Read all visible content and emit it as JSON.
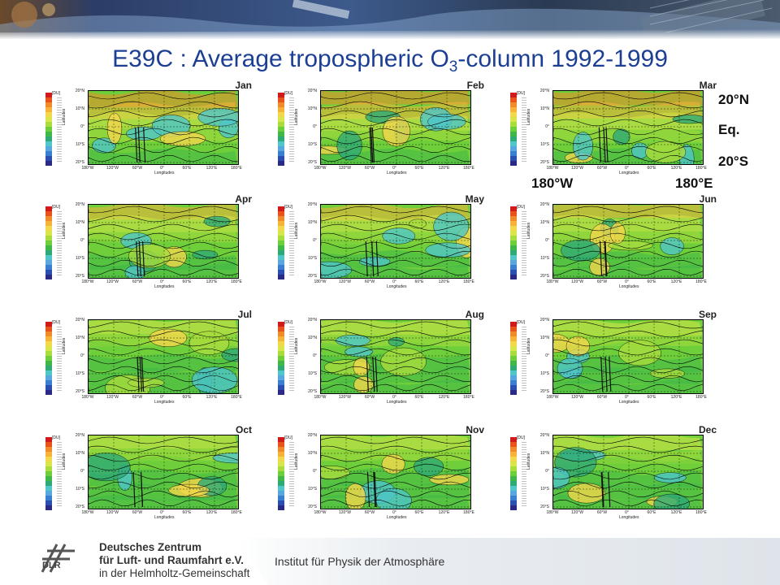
{
  "slide": {
    "title_main": "E39C : Average tropospheric O",
    "title_sub": "3",
    "title_rest": "-column 1992-1999"
  },
  "colors": {
    "title": "#1c3f94",
    "ozone_scale": [
      "#ffffff",
      "#d11a1a",
      "#e8531c",
      "#f08a2a",
      "#f5b33a",
      "#f3d84c",
      "#d9e64a",
      "#a9dd3e",
      "#6fcf3a",
      "#3fb848",
      "#2faa76",
      "#4fc6c8",
      "#58a7df",
      "#3a7fd0",
      "#2a4fb0",
      "#2a2a86"
    ]
  },
  "panel_common": {
    "unit": "[DU]",
    "y_ticks": [
      "20°N",
      "10°N",
      "0°",
      "10°S",
      "20°S"
    ],
    "y_label": "Latitudes",
    "x_ticks": [
      "180°W",
      "120°W",
      "60°W",
      "0°",
      "60°E",
      "120°E",
      "180°E"
    ],
    "x_label": "Longitudes"
  },
  "panels": [
    {
      "month": "Jan"
    },
    {
      "month": "Feb"
    },
    {
      "month": "Mar"
    },
    {
      "month": "Apr"
    },
    {
      "month": "May"
    },
    {
      "month": "Jun"
    },
    {
      "month": "Jul"
    },
    {
      "month": "Aug"
    },
    {
      "month": "Sep"
    },
    {
      "month": "Oct"
    },
    {
      "month": "Nov"
    },
    {
      "month": "Dec"
    }
  ],
  "annotations": {
    "lat_north": "20°N",
    "lat_eq": "Eq.",
    "lat_south": "20°S",
    "lon_west": "180°W",
    "lon_east": "180°E"
  },
  "footer": {
    "org_line1": "Deutsches Zentrum",
    "org_line2": "für Luft- und Raumfahrt e.V.",
    "org_line3": "in der Helmholtz-Gemeinschaft",
    "logo_text": "DLR",
    "institute": "Institut für Physik der Atmosphäre"
  }
}
